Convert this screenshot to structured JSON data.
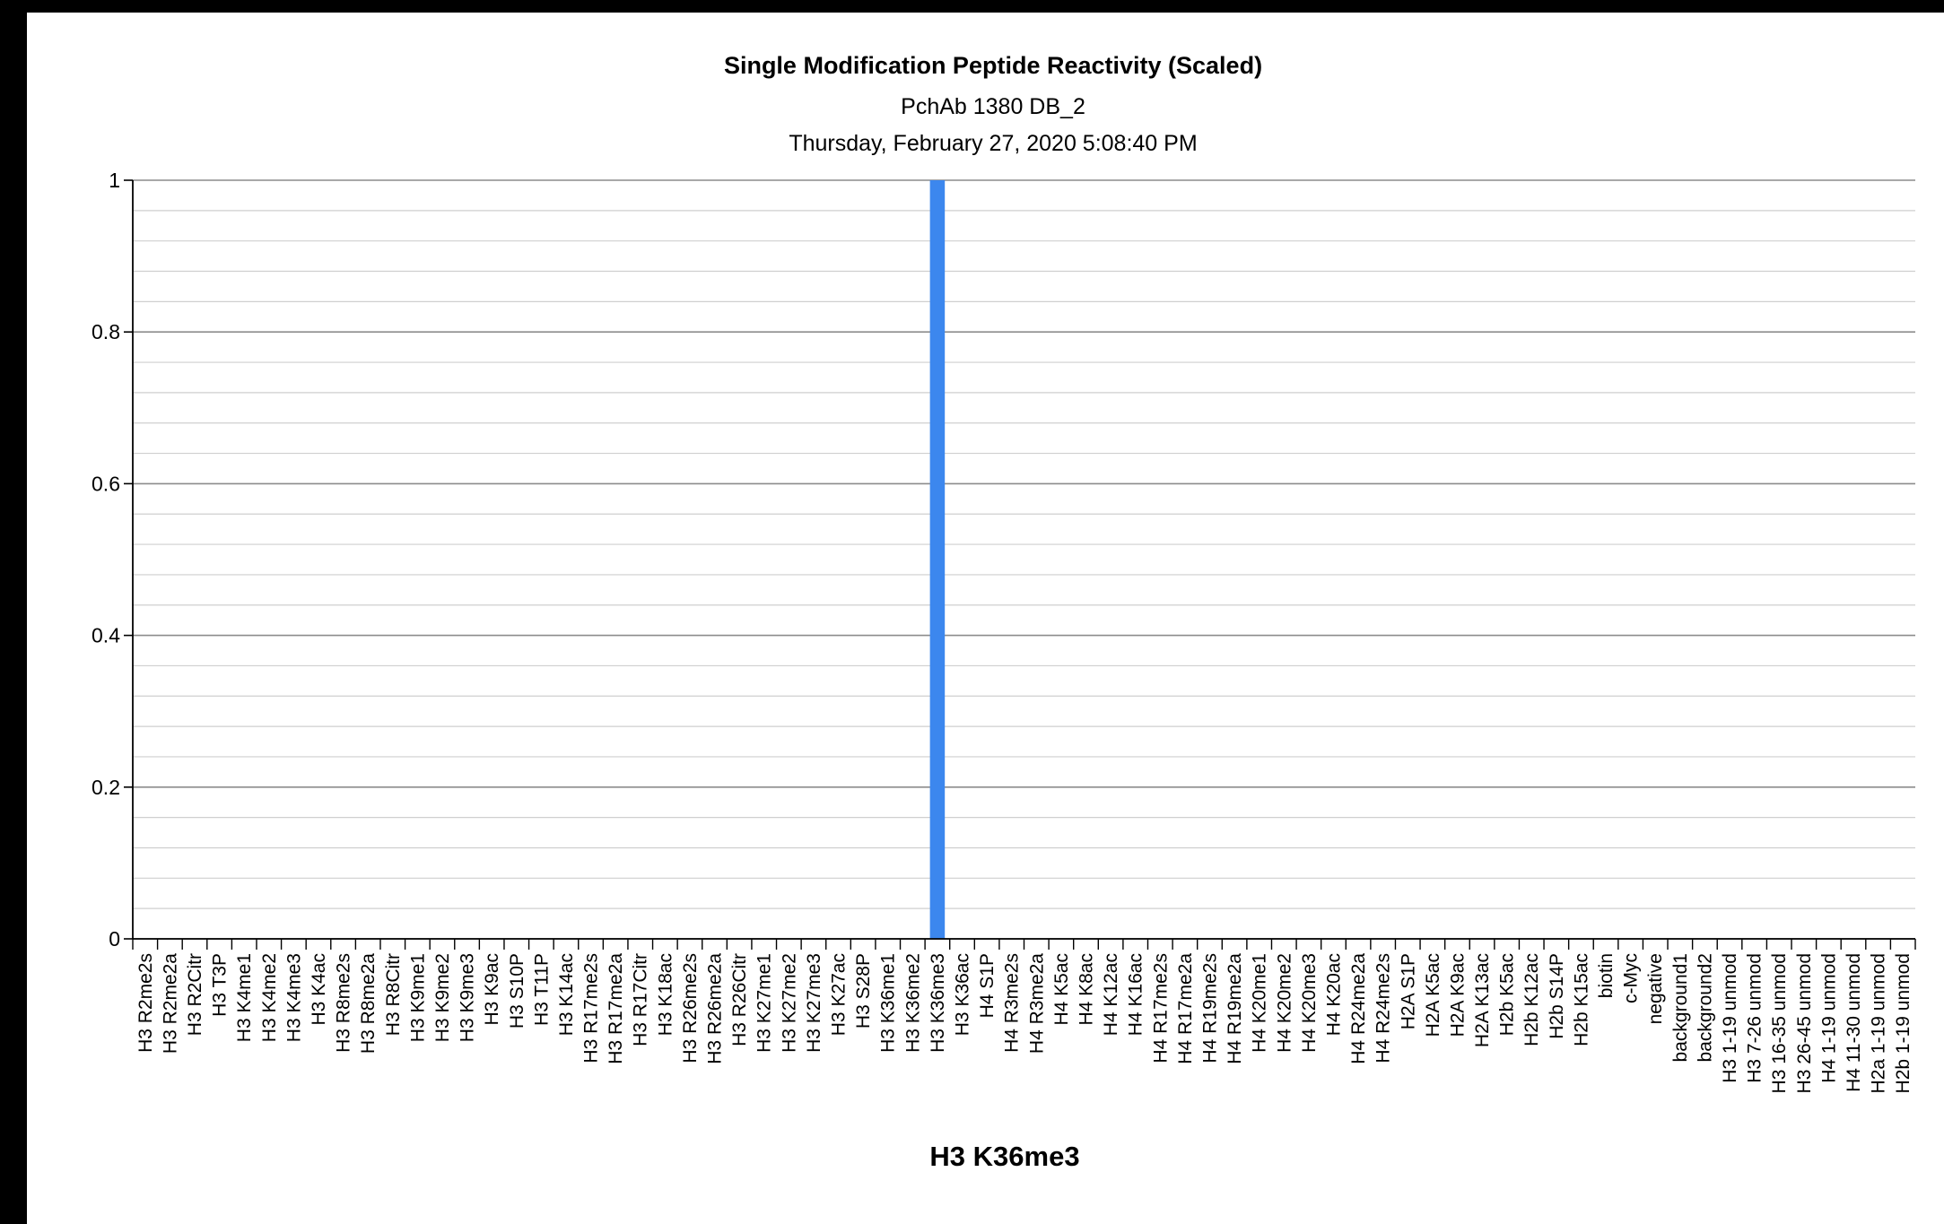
{
  "chart_data": {
    "type": "bar",
    "title": "Single Modification Peptide Reactivity (Scaled)",
    "subtitle": "PchAb 1380 DB_2",
    "timestamp": "Thursday, February 27, 2020 5:08:40 PM",
    "xlabel": "H3 K36me3",
    "ylabel": "",
    "ylim": [
      0,
      1
    ],
    "yticks": [
      "0",
      "0.2",
      "0.4",
      "0.6",
      "0.8",
      "1"
    ],
    "grid": true,
    "bar_color": "#3c87ee",
    "categories": [
      "H3 R2me2s",
      "H3 R2me2a",
      "H3 R2Citr",
      "H3 T3P",
      "H3 K4me1",
      "H3 K4me2",
      "H3 K4me3",
      "H3 K4ac",
      "H3 R8me2s",
      "H3 R8me2a",
      "H3 R8Citr",
      "H3 K9me1",
      "H3 K9me2",
      "H3 K9me3",
      "H3 K9ac",
      "H3 S10P",
      "H3 T11P",
      "H3 K14ac",
      "H3 R17me2s",
      "H3 R17me2a",
      "H3 R17Citr",
      "H3 K18ac",
      "H3 R26me2s",
      "H3 R26me2a",
      "H3 R26Citr",
      "H3 K27me1",
      "H3 K27me2",
      "H3 K27me3",
      "H3 K27ac",
      "H3 S28P",
      "H3 K36me1",
      "H3 K36me2",
      "H3 K36me3",
      "H3 K36ac",
      "H4 S1P",
      "H4 R3me2s",
      "H4 R3me2a",
      "H4 K5ac",
      "H4 K8ac",
      "H4 K12ac",
      "H4 K16ac",
      "H4 R17me2s",
      "H4 R17me2a",
      "H4 R19me2s",
      "H4 R19me2a",
      "H4 K20me1",
      "H4 K20me2",
      "H4 K20me3",
      "H4 K20ac",
      "H4 R24me2a",
      "H4 R24me2s",
      "H2A S1P",
      "H2A K5ac",
      "H2A K9ac",
      "H2A K13ac",
      "H2b K5ac",
      "H2b K12ac",
      "H2b S14P",
      "H2b K15ac",
      "biotin",
      "c-Myc",
      "negative",
      "background1",
      "background2",
      "H3 1-19 unmod",
      "H3 7-26 unmod",
      "H3 16-35 unmod",
      "H3 26-45 unmod",
      "H4 1-19 unmod",
      "H4 11-30 unmod",
      "H2a 1-19 unmod",
      "H2b 1-19 unmod"
    ],
    "values": [
      0,
      0,
      0,
      0,
      0,
      0,
      0,
      0,
      0,
      0,
      0,
      0,
      0,
      0,
      0,
      0,
      0,
      0,
      0,
      0,
      0,
      0,
      0,
      0,
      0,
      0,
      0,
      0,
      0,
      0,
      0,
      0,
      1,
      0,
      0,
      0,
      0,
      0,
      0,
      0,
      0,
      0,
      0,
      0,
      0,
      0,
      0,
      0,
      0,
      0,
      0,
      0,
      0,
      0,
      0,
      0,
      0,
      0,
      0,
      0,
      0,
      0,
      0,
      0,
      0,
      0,
      0,
      0,
      0,
      0,
      0,
      0
    ]
  }
}
